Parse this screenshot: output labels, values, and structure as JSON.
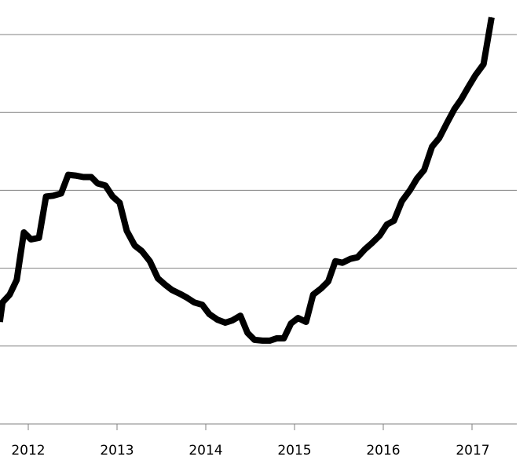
{
  "chart_data": {
    "type": "line",
    "title": "",
    "xlabel": "",
    "ylabel": "",
    "x_ticks": [
      "2012",
      "2013",
      "2014",
      "2015",
      "2016",
      "2017"
    ],
    "y_gridlines": [
      1,
      2,
      3,
      4,
      5
    ],
    "y_tick_labels_shown": false,
    "ylim": [
      0,
      5.4
    ],
    "xlim": [
      2011.68,
      2017.5
    ],
    "grid": "horizontal",
    "line_color": "#000000",
    "grid_color": "#808080",
    "series": [
      {
        "x": [
          2011.68,
          2011.71,
          2011.79,
          2011.87,
          2011.95,
          2012.03,
          2012.12,
          2012.2,
          2012.28,
          2012.37,
          2012.45,
          2012.53,
          2012.62,
          2012.71,
          2012.78,
          2012.87,
          2012.95,
          2013.03,
          2013.11,
          2013.2,
          2013.28,
          2013.37,
          2013.46,
          2013.54,
          2013.62,
          2013.71,
          2013.79,
          2013.87,
          2013.96,
          2014.04,
          2014.13,
          2014.22,
          2014.3,
          2014.39,
          2014.47,
          2014.55,
          2014.64,
          2014.72,
          2014.8,
          2014.88,
          2014.96,
          2015.04,
          2015.13,
          2015.21,
          2015.3,
          2015.38,
          2015.46,
          2015.54,
          2015.63,
          2015.71,
          2015.79,
          2015.87,
          2015.96,
          2016.04,
          2016.12,
          2016.21,
          2016.3,
          2016.38,
          2016.46,
          2016.55,
          2016.63,
          2016.72,
          2016.8,
          2016.88,
          2016.96,
          2017.04,
          2017.13,
          2017.22
        ],
        "y": [
          1.31,
          1.56,
          1.66,
          1.85,
          2.46,
          2.37,
          2.39,
          2.92,
          2.93,
          2.96,
          3.2,
          3.19,
          3.17,
          3.17,
          3.09,
          3.06,
          2.92,
          2.84,
          2.48,
          2.29,
          2.22,
          2.09,
          1.87,
          1.79,
          1.72,
          1.67,
          1.62,
          1.56,
          1.53,
          1.41,
          1.34,
          1.3,
          1.33,
          1.39,
          1.17,
          1.08,
          1.07,
          1.07,
          1.1,
          1.1,
          1.29,
          1.36,
          1.31,
          1.66,
          1.74,
          1.83,
          2.09,
          2.07,
          2.12,
          2.14,
          2.24,
          2.32,
          2.42,
          2.56,
          2.61,
          2.86,
          3.0,
          3.15,
          3.26,
          3.56,
          3.67,
          3.87,
          4.04,
          4.17,
          4.33,
          4.48,
          4.62,
          5.22
        ]
      }
    ]
  }
}
